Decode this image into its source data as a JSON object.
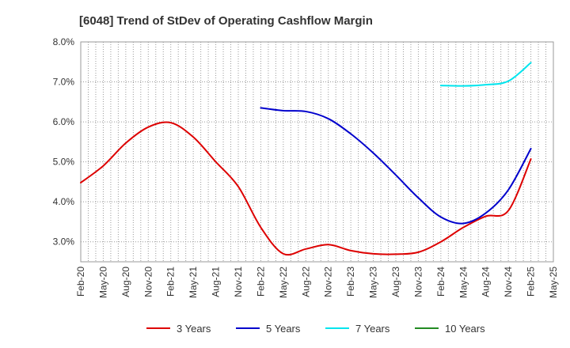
{
  "chart_data": {
    "type": "line",
    "title": "[6048]  Trend of StDev of Operating Cashflow Margin",
    "xlabel": "",
    "ylabel": "",
    "x_tick_labels": [
      "Feb-20",
      "May-20",
      "Aug-20",
      "Nov-20",
      "Feb-21",
      "May-21",
      "Aug-21",
      "Nov-21",
      "Feb-22",
      "May-22",
      "Aug-22",
      "Nov-22",
      "Feb-23",
      "May-23",
      "Aug-23",
      "Nov-23",
      "Feb-24",
      "May-24",
      "Aug-24",
      "Nov-24",
      "Feb-25",
      "May-25"
    ],
    "y_tick_labels": [
      "3.0%",
      "4.0%",
      "5.0%",
      "6.0%",
      "7.0%",
      "8.0%"
    ],
    "ylim": [
      2.5,
      8.0
    ],
    "y_ticks": [
      3.0,
      4.0,
      5.0,
      6.0,
      7.0,
      8.0
    ],
    "grid": true,
    "legend_position": "bottom",
    "series": [
      {
        "name": "3 Years",
        "color": "#dd0000",
        "points": [
          [
            "Feb-20",
            4.48
          ],
          [
            "May-20",
            4.9
          ],
          [
            "Aug-20",
            5.47
          ],
          [
            "Nov-20",
            5.87
          ],
          [
            "Feb-21",
            5.98
          ],
          [
            "May-21",
            5.62
          ],
          [
            "Aug-21",
            5.0
          ],
          [
            "Nov-21",
            4.38
          ],
          [
            "Feb-22",
            3.36
          ],
          [
            "May-22",
            2.7
          ],
          [
            "Aug-22",
            2.82
          ],
          [
            "Nov-22",
            2.93
          ],
          [
            "Feb-23",
            2.78
          ],
          [
            "May-23",
            2.7
          ],
          [
            "Aug-23",
            2.69
          ],
          [
            "Nov-23",
            2.74
          ],
          [
            "Feb-24",
            3.0
          ],
          [
            "May-24",
            3.36
          ],
          [
            "Aug-24",
            3.64
          ],
          [
            "Nov-24",
            3.78
          ],
          [
            "Feb-25",
            5.07
          ]
        ]
      },
      {
        "name": "5 Years",
        "color": "#0000cc",
        "points": [
          [
            "Feb-22",
            6.35
          ],
          [
            "May-22",
            6.28
          ],
          [
            "Aug-22",
            6.26
          ],
          [
            "Nov-22",
            6.08
          ],
          [
            "Feb-23",
            5.7
          ],
          [
            "May-23",
            5.22
          ],
          [
            "Aug-23",
            4.67
          ],
          [
            "Nov-23",
            4.1
          ],
          [
            "Feb-24",
            3.62
          ],
          [
            "May-24",
            3.46
          ],
          [
            "Aug-24",
            3.72
          ],
          [
            "Nov-24",
            4.3
          ],
          [
            "Feb-25",
            5.33
          ]
        ]
      },
      {
        "name": "7 Years",
        "color": "#00e5ee",
        "points": [
          [
            "Feb-24",
            6.91
          ],
          [
            "May-24",
            6.9
          ],
          [
            "Aug-24",
            6.93
          ],
          [
            "Nov-24",
            7.02
          ],
          [
            "Feb-25",
            7.48
          ]
        ]
      },
      {
        "name": "10 Years",
        "color": "#228b22",
        "points": []
      }
    ]
  }
}
